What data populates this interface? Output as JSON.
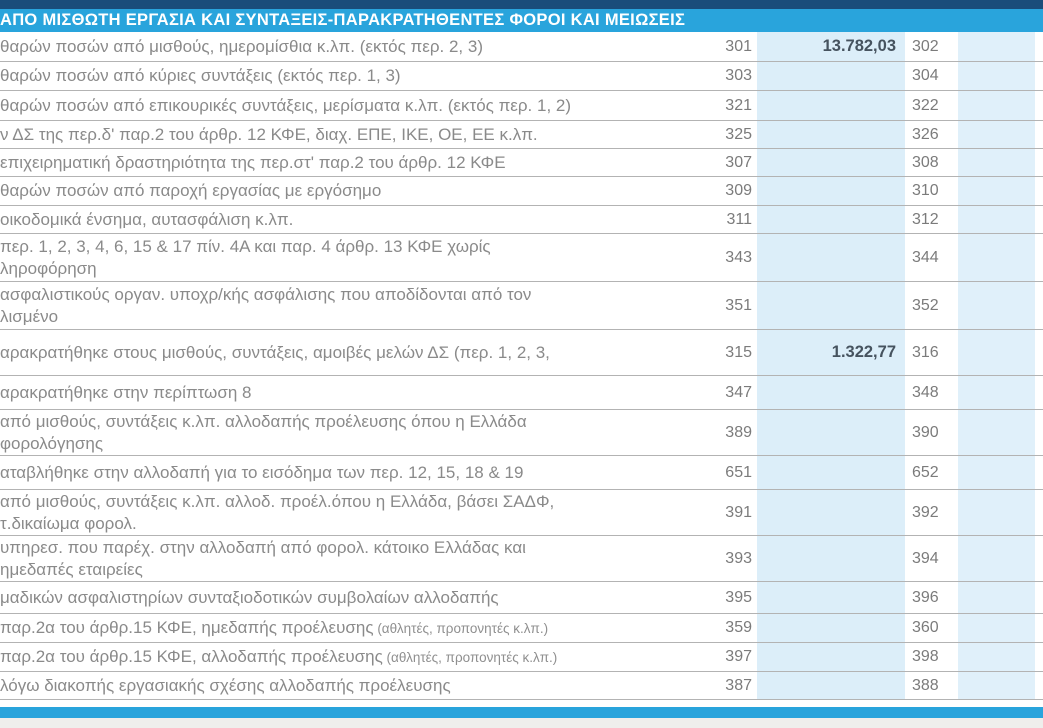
{
  "header": {
    "title": "ΑΠΟ ΜΙΣΘΩΤΗ ΕΡΓΑΣΙΑ ΚΑΙ ΣΥΝΤΑΞΕΙΣ-ΠΑΡΑΚΡΑΤΗΘΕΝΤΕΣ ΦΟΡΟΙ ΚΑΙ ΜΕΙΩΣΕΙΣ"
  },
  "colors": {
    "header_bg": "#29a4dc",
    "top_strip": "#1a4d7a",
    "field_bg": "#dceef9",
    "value_text": "#46535f",
    "label_text": "#8a8a8a",
    "row_border": "#b3b3b3"
  },
  "rows": [
    {
      "line1": "θαρών ποσών από μισθούς, ημερομίσθια κ.λπ. (εκτός περ. 2, 3)",
      "line2": "",
      "note": "",
      "code1": "301",
      "value1": "13.782,03",
      "code2": "302",
      "value2": ""
    },
    {
      "line1": "θαρών ποσών από κύριες συντάξεις (εκτός περ. 1, 3)",
      "line2": "",
      "note": "",
      "code1": "303",
      "value1": "",
      "code2": "304",
      "value2": ""
    },
    {
      "line1": "θαρών ποσών από επικουρικές συντάξεις, μερίσματα κ.λπ. (εκτός περ. 1, 2)",
      "line2": "",
      "note": "",
      "code1": "321",
      "value1": "",
      "code2": "322",
      "value2": ""
    },
    {
      "line1": "ν ΔΣ της περ.δ' παρ.2 του άρθρ. 12 ΚΦΕ, διαχ. ΕΠΕ, ΙΚΕ, ΟΕ, ΕΕ κ.λπ.",
      "line2": "",
      "note": "",
      "code1": "325",
      "value1": "",
      "code2": "326",
      "value2": ""
    },
    {
      "line1": "επιχειρηματική δραστηριότητα της περ.στ' παρ.2 του άρθρ. 12 ΚΦΕ",
      "line2": "",
      "note": "",
      "code1": "307",
      "value1": "",
      "code2": "308",
      "value2": ""
    },
    {
      "line1": "θαρών ποσών από παροχή εργασίας με εργόσημο",
      "line2": "",
      "note": "",
      "code1": "309",
      "value1": "",
      "code2": "310",
      "value2": ""
    },
    {
      "line1": "οικοδομικά ένσημα, αυτασφάλιση κ.λπ.",
      "line2": "",
      "note": "",
      "code1": "311",
      "value1": "",
      "code2": "312",
      "value2": ""
    },
    {
      "line1": "περ. 1, 2, 3, 4, 6, 15 & 17 πίν. 4Α και παρ. 4 άρθρ. 13 ΚΦΕ χωρίς",
      "line2": "ληροφόρηση",
      "note": "",
      "code1": "343",
      "value1": "",
      "code2": "344",
      "value2": ""
    },
    {
      "line1": "ασφαλιστικούς οργαν. υποχρ/κής ασφάλισης που αποδίδονται από τον",
      "line2": "λισμένο",
      "note": "",
      "code1": "351",
      "value1": "",
      "code2": "352",
      "value2": ""
    },
    {
      "line1": "αρακρατήθηκε στους μισθούς, συντάξεις, αμοιβές μελών ΔΣ (περ. 1, 2, 3,",
      "line2": "",
      "note": "",
      "code1": "315",
      "value1": "1.322,77",
      "code2": "316",
      "value2": ""
    },
    {
      "line1": "αρακρατήθηκε στην περίπτωση 8",
      "line2": "",
      "note": "",
      "code1": "347",
      "value1": "",
      "code2": "348",
      "value2": ""
    },
    {
      "line1": "από μισθούς, συντάξεις κ.λπ. αλλοδαπής προέλευσης όπου η Ελλάδα",
      "line2": "φορολόγησης",
      "note": "",
      "code1": "389",
      "value1": "",
      "code2": "390",
      "value2": ""
    },
    {
      "line1": "αταβλήθηκε στην αλλοδαπή για το εισόδημα των περ. 12, 15, 18 & 19",
      "line2": "",
      "note": "",
      "code1": "651",
      "value1": "",
      "code2": "652",
      "value2": ""
    },
    {
      "line1": "από μισθούς, συντάξεις κ.λπ. αλλοδ. προέλ.όπου η Ελλάδα, βάσει ΣΑΔΦ,",
      "line2": "τ.δικαίωμα φορολ.",
      "note": "",
      "code1": "391",
      "value1": "",
      "code2": "392",
      "value2": ""
    },
    {
      "line1": "υπηρεσ. που παρέχ. στην αλλοδαπή από φορολ. κάτοικο Ελλάδας και",
      "line2": "ημεδαπές εταιρείες",
      "note": "",
      "code1": "393",
      "value1": "",
      "code2": "394",
      "value2": ""
    },
    {
      "line1": "μαδικών ασφαλιστηρίων συνταξιοδοτικών συμβολαίων αλλοδαπής",
      "line2": "",
      "note": "",
      "code1": "395",
      "value1": "",
      "code2": "396",
      "value2": ""
    },
    {
      "line1": "παρ.2α του άρθρ.15 ΚΦΕ, ημεδαπής προέλευσης",
      "line2": "",
      "note": " (αθλητές, προπονητές κ.λπ.)",
      "code1": "359",
      "value1": "",
      "code2": "360",
      "value2": ""
    },
    {
      "line1": "παρ.2α του άρθρ.15 ΚΦΕ, αλλοδαπής προέλευσης",
      "line2": "",
      "note": " (αθλητές, προπονητές κ.λπ.)",
      "code1": "397",
      "value1": "",
      "code2": "398",
      "value2": ""
    },
    {
      "line1": "λόγω διακοπής εργασιακής σχέσης αλλοδαπής προέλευσης",
      "line2": "",
      "note": "",
      "code1": "387",
      "value1": "",
      "code2": "388",
      "value2": ""
    }
  ]
}
